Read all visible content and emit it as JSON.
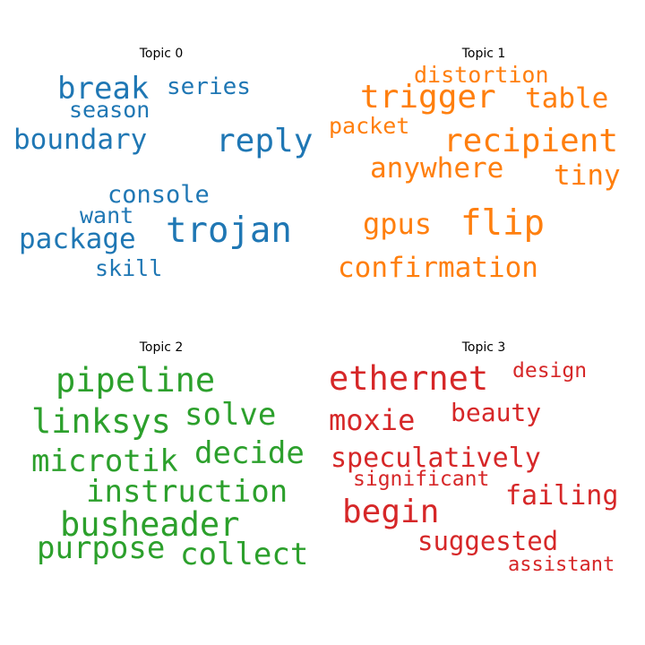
{
  "panels": [
    {
      "title": "Topic 0",
      "color": "#1f77b4",
      "words": [
        "break",
        "series",
        "season",
        "boundary",
        "reply",
        "console",
        "want",
        "trojan",
        "package",
        "skill"
      ]
    },
    {
      "title": "Topic 1",
      "color": "#ff7f0e",
      "words": [
        "distortion",
        "trigger",
        "table",
        "packet",
        "recipient",
        "anywhere",
        "tiny",
        "gpus",
        "flip",
        "confirmation"
      ]
    },
    {
      "title": "Topic 2",
      "color": "#2ca02c",
      "words": [
        "pipeline",
        "linksys",
        "solve",
        "microtik",
        "decide",
        "instruction",
        "busheader",
        "purpose",
        "collect"
      ]
    },
    {
      "title": "Topic 3",
      "color": "#d62728",
      "words": [
        "ethernet",
        "design",
        "moxie",
        "beauty",
        "speculatively",
        "significant",
        "failing",
        "begin",
        "suggested",
        "assistant"
      ]
    }
  ]
}
